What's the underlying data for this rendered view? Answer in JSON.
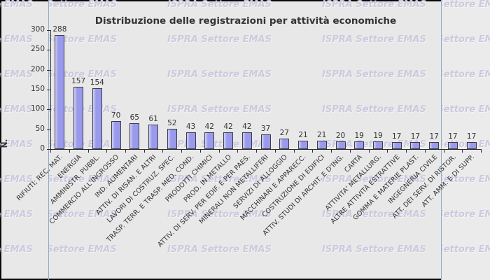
{
  "watermark": {
    "text": "ISPRA Settore EMAS"
  },
  "colors": {
    "background": "#e8e8e8",
    "right_pane": "#ebebeb",
    "outer_border": "#0a0a0a",
    "column_gridline": "#96aac6",
    "watermark_text": "#cbcbdf",
    "bar_fill": "#9a9aec",
    "bar_highlight": "#c6c6f2",
    "bar_border": "#3c3c46",
    "axis": "#2e2e2e",
    "text": "#333333"
  },
  "chart_data": {
    "type": "bar",
    "title": "Distribuzione delle registrazioni per attività economiche",
    "ylabel": "N.",
    "xlabel": "",
    "categories": [
      "RIFIUTI; REC. MAT.",
      "ENERGIA",
      "AMMINISTR. PUBBL.",
      "COMMERCIO ALL'INGROSSO",
      "IND. ALIMENTARI",
      "ATTIV. DI RISAN. E ALTRI",
      "LAVORI DI COSTRUZ. SPEC.",
      "TRASP. TERR. E TRASP. MED. COND.",
      "PRODOTTI CHIMICI",
      "PROD. IN METALLO",
      "ATTIV. DI SERV. PER EDIF. E PER PAES.",
      "MINERALI NON METALLIFERI",
      "SERVIZI DI ALLOGGIO",
      "MACCHINARI E APPARECC.",
      "COSTRUZIONE DI EDIFICI",
      "ATTIV. STUDI DI ARCHIT. E D'ING.",
      "CARTA",
      "ATTIVITA' METALLURG.",
      "ALTRE ATTIVITÀ ESTRATTIVE",
      "GOMMA E MATERIE PLAST.",
      "INGEGNERIA CIVILE",
      "ATT. DEI SERV. DI RISTOR.",
      "ATT. AMM. E DI SUPP."
    ],
    "values": [
      288,
      157,
      154,
      70,
      65,
      61,
      52,
      43,
      42,
      42,
      42,
      37,
      27,
      21,
      21,
      20,
      19,
      19,
      17,
      17,
      17,
      17,
      17
    ],
    "yticks": [
      0,
      50,
      100,
      150,
      200,
      250,
      300
    ],
    "ylim": [
      0,
      300
    ],
    "grid": false,
    "legend": "none",
    "bar_value_labels": true,
    "x_label_rotation_deg": 45
  }
}
